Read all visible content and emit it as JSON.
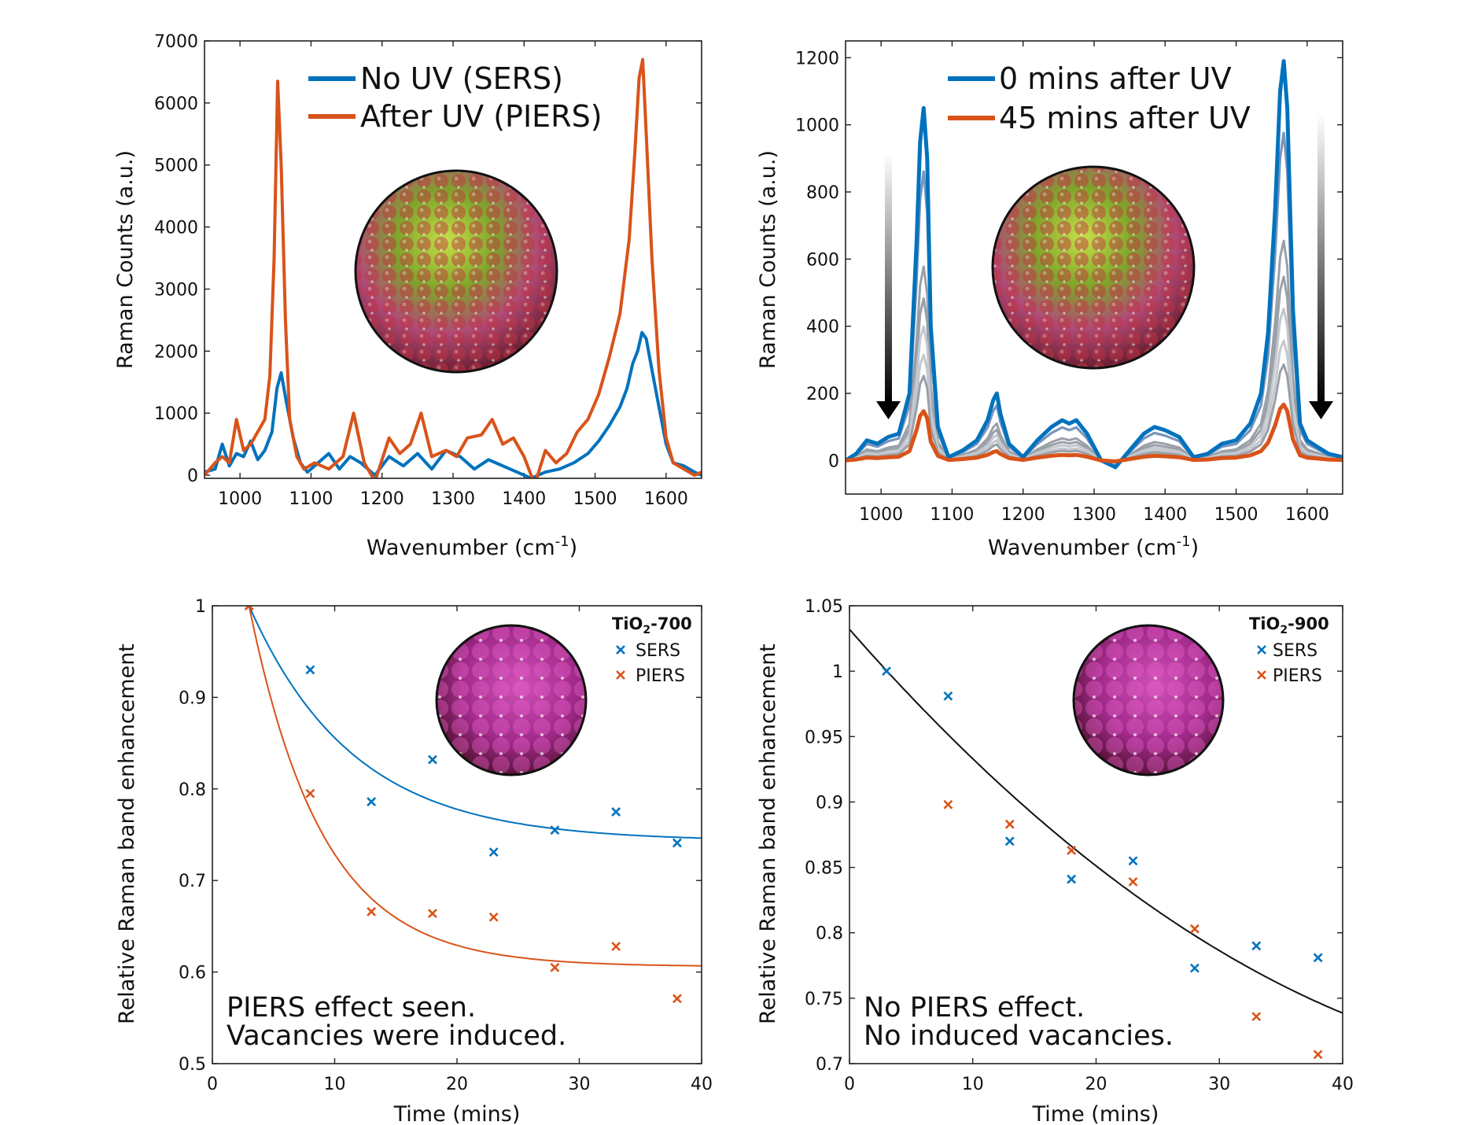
{
  "colors": {
    "blue": "#0072BD",
    "orange": "#D95319",
    "black": "#111111",
    "grey_light": "#c4c8ce",
    "grey_mid": "#9aa0a8",
    "blue_mid": "#7895bd"
  },
  "chart_data": [
    {
      "id": "a",
      "type": "line",
      "title": "",
      "xlabel": "Wavenumber (cm",
      "xlabel_sup": "-1",
      "xlabel_end": ")",
      "ylabel": "Raman Counts (a.u.)",
      "xlim": [
        950,
        1650
      ],
      "ylim": [
        -50,
        7000
      ],
      "xticks": [
        1000,
        1100,
        1200,
        1300,
        1400,
        1500,
        1600
      ],
      "yticks": [
        0,
        1000,
        2000,
        3000,
        4000,
        5000,
        6000,
        7000
      ],
      "legend": [
        "No UV (SERS)",
        "After UV (PIERS)"
      ],
      "legend_position": "top",
      "inset_image": "molecule-on-TiO2-sphere",
      "series": [
        {
          "name": "No UV (SERS)",
          "color": "blue",
          "x": [
            950,
            965,
            975,
            985,
            995,
            1005,
            1015,
            1025,
            1035,
            1045,
            1052,
            1058,
            1065,
            1075,
            1085,
            1095,
            1110,
            1125,
            1140,
            1155,
            1170,
            1190,
            1210,
            1230,
            1250,
            1270,
            1290,
            1310,
            1330,
            1350,
            1370,
            1390,
            1410,
            1430,
            1450,
            1470,
            1490,
            1505,
            1520,
            1535,
            1545,
            1553,
            1560,
            1566,
            1572,
            1580,
            1590,
            1600,
            1610,
            1625,
            1640,
            1650
          ],
          "y": [
            50,
            100,
            500,
            150,
            350,
            300,
            550,
            250,
            400,
            700,
            1400,
            1650,
            1200,
            600,
            200,
            50,
            200,
            350,
            100,
            300,
            200,
            0,
            300,
            150,
            350,
            100,
            400,
            300,
            100,
            250,
            150,
            50,
            -50,
            50,
            100,
            200,
            350,
            550,
            800,
            1100,
            1400,
            1800,
            2000,
            2300,
            2200,
            1700,
            1100,
            500,
            200,
            150,
            50,
            0
          ]
        },
        {
          "name": "After UV (PIERS)",
          "color": "orange",
          "x": [
            950,
            965,
            975,
            985,
            995,
            1005,
            1015,
            1025,
            1035,
            1042,
            1048,
            1053,
            1058,
            1064,
            1070,
            1080,
            1090,
            1105,
            1125,
            1145,
            1160,
            1175,
            1190,
            1210,
            1225,
            1240,
            1255,
            1270,
            1290,
            1305,
            1320,
            1340,
            1355,
            1370,
            1385,
            1400,
            1415,
            1430,
            1445,
            1460,
            1475,
            1490,
            1505,
            1520,
            1535,
            1548,
            1556,
            1562,
            1567,
            1572,
            1580,
            1590,
            1600,
            1610,
            1625,
            1640,
            1650
          ],
          "y": [
            0,
            200,
            300,
            200,
            900,
            400,
            500,
            700,
            900,
            1600,
            3500,
            6350,
            5000,
            2500,
            900,
            300,
            100,
            200,
            100,
            300,
            1000,
            200,
            -100,
            600,
            350,
            500,
            1000,
            300,
            400,
            300,
            600,
            650,
            900,
            500,
            600,
            300,
            -150,
            400,
            200,
            350,
            700,
            900,
            1300,
            1900,
            2600,
            3800,
            5200,
            6400,
            6700,
            5500,
            3500,
            1700,
            600,
            200,
            100,
            0,
            50
          ]
        }
      ]
    },
    {
      "id": "b",
      "type": "line",
      "xlabel": "Wavenumber (cm",
      "xlabel_sup": "-1",
      "xlabel_end": ")",
      "ylabel": "Raman Counts (a.u.)",
      "xlim": [
        950,
        1650
      ],
      "ylim": [
        -100,
        1250
      ],
      "xticks": [
        1000,
        1100,
        1200,
        1300,
        1400,
        1500,
        1600
      ],
      "yticks": [
        0,
        200,
        400,
        600,
        800,
        1000,
        1200
      ],
      "legend": [
        "0 mins after UV",
        "45 mins after UV"
      ],
      "legend_position": "top",
      "arrows": "downward gradient arrows at both peaks",
      "inset_image": "molecule-on-TiO2-sphere",
      "x": [
        950,
        965,
        980,
        995,
        1010,
        1025,
        1040,
        1050,
        1055,
        1060,
        1065,
        1070,
        1080,
        1095,
        1115,
        1135,
        1150,
        1158,
        1163,
        1168,
        1180,
        1200,
        1220,
        1240,
        1255,
        1265,
        1275,
        1290,
        1310,
        1330,
        1350,
        1370,
        1385,
        1400,
        1420,
        1440,
        1460,
        1480,
        1500,
        1520,
        1535,
        1545,
        1555,
        1562,
        1567,
        1572,
        1580,
        1590,
        1600,
        1615,
        1630,
        1650
      ],
      "base_shape": [
        0,
        20,
        60,
        50,
        70,
        80,
        200,
        650,
        950,
        1050,
        900,
        400,
        100,
        10,
        30,
        60,
        120,
        180,
        200,
        140,
        50,
        10,
        60,
        100,
        120,
        110,
        120,
        80,
        0,
        -20,
        30,
        80,
        100,
        90,
        70,
        10,
        20,
        50,
        60,
        110,
        200,
        380,
        750,
        1100,
        1190,
        1050,
        450,
        110,
        60,
        40,
        20,
        10
      ],
      "series": [
        {
          "name": "0 mins after UV",
          "scale": 1.0,
          "color": "blue",
          "width": 5
        },
        {
          "name": "",
          "scale": 0.82,
          "color": "blue_mid",
          "width": 3.2
        },
        {
          "name": "",
          "scale": 0.55,
          "color": "grey_mid",
          "width": 3
        },
        {
          "name": "",
          "scale": 0.46,
          "color": "grey_mid",
          "width": 3
        },
        {
          "name": "",
          "scale": 0.38,
          "color": "grey_light",
          "width": 3
        },
        {
          "name": "",
          "scale": 0.3,
          "color": "grey_light",
          "width": 3
        },
        {
          "name": "",
          "scale": 0.24,
          "color": "grey_mid",
          "width": 3
        },
        {
          "name": "45 mins after UV",
          "scale": 0.14,
          "color": "orange",
          "width": 5
        }
      ]
    },
    {
      "id": "c",
      "type": "scatter",
      "xlabel": "Time (mins)",
      "ylabel": "Relative Raman band enhancement",
      "xlim": [
        0,
        40
      ],
      "ylim": [
        0.5,
        1
      ],
      "xticks": [
        0,
        10,
        20,
        30,
        40
      ],
      "yticks": [
        0.5,
        0.6,
        0.7,
        0.8,
        0.9,
        1
      ],
      "legend_title": "TiO",
      "legend_title_sub": "2",
      "legend_title_end": "-700",
      "legend": [
        "SERS",
        "PIERS"
      ],
      "annotation": [
        "PIERS effect seen.",
        "Vacancies were induced."
      ],
      "inset_image": "TiO2-surface-sphere",
      "series": [
        {
          "name": "SERS",
          "color": "blue",
          "x": [
            3,
            8,
            13,
            18,
            23,
            28,
            33,
            38
          ],
          "y": [
            1.0,
            0.93,
            0.786,
            0.832,
            0.731,
            0.755,
            0.775,
            0.741
          ]
        },
        {
          "name": "PIERS",
          "color": "orange",
          "x": [
            3,
            8,
            13,
            18,
            23,
            28,
            33,
            38
          ],
          "y": [
            1.0,
            0.795,
            0.666,
            0.664,
            0.66,
            0.605,
            0.628,
            0.571
          ]
        }
      ],
      "fits": [
        {
          "color": "blue",
          "model": "exp",
          "a": 0.743,
          "b": 0.257,
          "t0": 3,
          "tau": 8.5
        },
        {
          "color": "orange",
          "model": "exp",
          "a": 0.606,
          "b": 0.394,
          "t0": 3,
          "tau": 6.0
        }
      ]
    },
    {
      "id": "d",
      "type": "scatter",
      "xlabel": "Time (mins)",
      "ylabel": "Relative Raman band enhancement",
      "xlim": [
        0,
        40
      ],
      "ylim": [
        0.7,
        1.05
      ],
      "xticks": [
        0,
        10,
        20,
        30,
        40
      ],
      "yticks": [
        0.7,
        0.75,
        0.8,
        0.85,
        0.9,
        0.95,
        1,
        1.05
      ],
      "legend_title": "TiO",
      "legend_title_sub": "2",
      "legend_title_end": "-900",
      "legend": [
        "SERS",
        "PIERS"
      ],
      "annotation": [
        "No PIERS effect.",
        "No induced vacancies."
      ],
      "inset_image": "TiO2-surface-sphere",
      "series": [
        {
          "name": "SERS",
          "color": "blue",
          "x": [
            3,
            8,
            13,
            18,
            23,
            28,
            33,
            38
          ],
          "y": [
            1.0,
            0.981,
            0.87,
            0.841,
            0.855,
            0.773,
            0.79,
            0.781
          ]
        },
        {
          "name": "PIERS",
          "color": "orange",
          "x": [
            8,
            13,
            18,
            23,
            28,
            33,
            38
          ],
          "y": [
            0.898,
            0.883,
            0.863,
            0.839,
            0.803,
            0.736,
            0.707
          ]
        }
      ],
      "fits": [
        {
          "color": "black",
          "model": "quad",
          "c0": 1.032,
          "c1": -0.01075,
          "c2": 8.54e-05
        }
      ]
    }
  ]
}
